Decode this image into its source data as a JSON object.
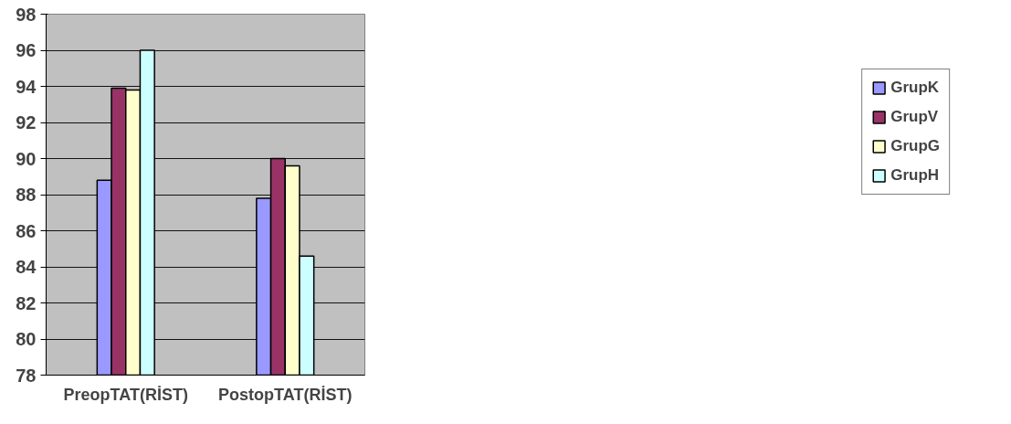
{
  "chart_data": {
    "type": "bar",
    "categories": [
      "PreopTAT(RİST)",
      "PostopTAT(RİST)"
    ],
    "series": [
      {
        "name": "GrupK",
        "color": "#9999ff",
        "values": [
          88.8,
          87.8
        ]
      },
      {
        "name": "GrupV",
        "color": "#993366",
        "values": [
          93.9,
          90.0
        ]
      },
      {
        "name": "GrupG",
        "color": "#ffffcc",
        "values": [
          93.8,
          89.6
        ]
      },
      {
        "name": "GrupH",
        "color": "#ccffff",
        "values": [
          96.0,
          84.6
        ]
      }
    ],
    "ylim": [
      78,
      98
    ],
    "yticks": [
      78,
      80,
      82,
      84,
      86,
      88,
      90,
      92,
      94,
      96,
      98
    ],
    "grid": "y",
    "legend": "right"
  }
}
